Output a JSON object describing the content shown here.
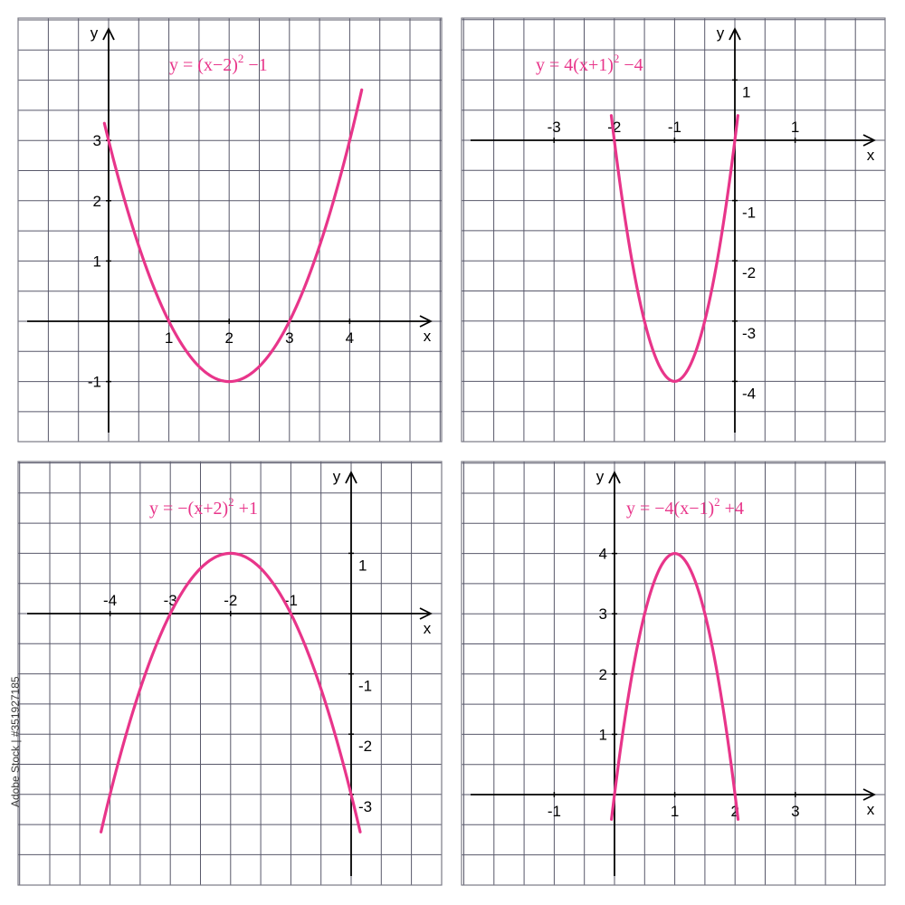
{
  "side_caption": "Adobe Stock | #351927185",
  "colors": {
    "curve": "#e8358a",
    "grid": "#58586a",
    "axis": "#000000",
    "frame": "#7a7a86",
    "text": "#000000"
  },
  "chart_data": [
    {
      "type": "line",
      "title": "y = (x−2)² −1",
      "title_parts": {
        "base": "y = (x−2)",
        "sup": "2",
        "tail": " −1"
      },
      "xlabel": "x",
      "ylabel": "y",
      "xlim": [
        -1.4,
        5.4
      ],
      "ylim": [
        -1.9,
        4.8
      ],
      "grid": true,
      "x_ticks": [
        1,
        2,
        3,
        4
      ],
      "y_ticks": [
        -1,
        1,
        2,
        3
      ],
      "domain": [
        -0.07,
        4.2
      ],
      "series": [
        {
          "x": [
            0,
            0.5,
            1,
            1.5,
            2,
            2.5,
            3,
            3.5,
            4
          ],
          "y": [
            3,
            1.25,
            0,
            -0.75,
            -1,
            -0.75,
            0,
            1.25,
            3
          ]
        }
      ]
    },
    {
      "type": "line",
      "title": "y = 4(x+1)² −4",
      "title_parts": {
        "base": "y = 4(x+1)",
        "sup": "2",
        "tail": " −4"
      },
      "xlabel": "x",
      "ylabel": "y",
      "xlim": [
        -4.5,
        2.4
      ],
      "ylim": [
        -4.8,
        2.0
      ],
      "grid": true,
      "x_ticks": [
        -3,
        -2,
        -1,
        1
      ],
      "y_ticks": [
        -4,
        -3,
        -2,
        -1,
        1
      ],
      "domain": [
        -2.05,
        0.05
      ],
      "series": [
        {
          "x": [
            -2,
            -1.5,
            -1,
            -0.5,
            0
          ],
          "y": [
            0,
            -3,
            -4,
            -3,
            0
          ]
        }
      ]
    },
    {
      "type": "line",
      "title": "y = −(x+2)² +1",
      "title_parts": {
        "base": "y = −(x+2)",
        "sup": "2",
        "tail": " +1"
      },
      "xlabel": "x",
      "ylabel": "y",
      "xlim": [
        -5.4,
        1.4
      ],
      "ylim": [
        -4.4,
        2.4
      ],
      "grid": true,
      "x_ticks": [
        -4,
        -3,
        -2,
        -1
      ],
      "y_ticks": [
        -3,
        -2,
        -1,
        1
      ],
      "domain": [
        -4.15,
        0.15
      ],
      "series": [
        {
          "x": [
            -4,
            -3,
            -2,
            -1,
            0
          ],
          "y": [
            -3,
            0,
            1,
            0,
            -3
          ]
        }
      ]
    },
    {
      "type": "line",
      "title": "y = −4(x−1)² +4",
      "title_parts": {
        "base": "y = −4(x−1)",
        "sup": "2",
        "tail": " +4"
      },
      "xlabel": "x",
      "ylabel": "y",
      "xlim": [
        -2.5,
        4.4
      ],
      "ylim": [
        -1.8,
        5.0
      ],
      "grid": true,
      "x_ticks": [
        -1,
        1,
        2,
        3
      ],
      "y_ticks": [
        1,
        2,
        3,
        4
      ],
      "domain": [
        -0.05,
        2.05
      ],
      "series": [
        {
          "x": [
            0,
            0.5,
            1,
            1.5,
            2
          ],
          "y": [
            0,
            3,
            4,
            3,
            0
          ]
        }
      ]
    }
  ]
}
